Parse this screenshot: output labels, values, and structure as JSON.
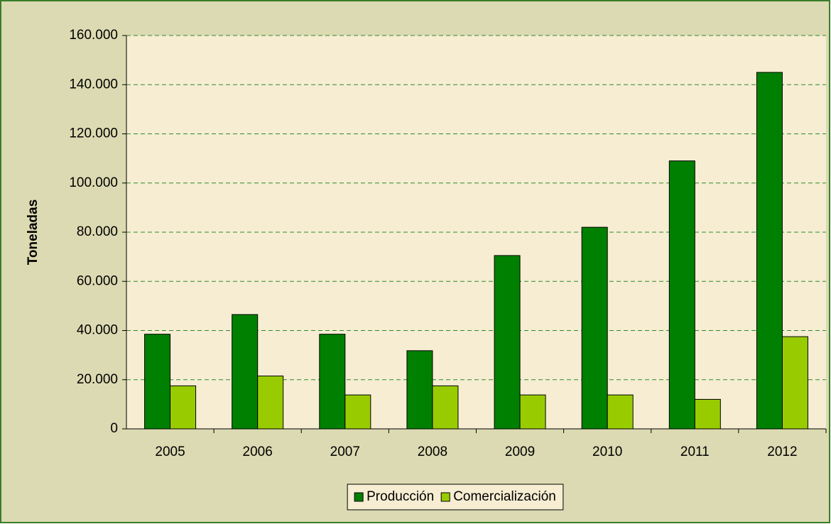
{
  "chart_data": {
    "type": "bar",
    "y_label": "Toneladas",
    "categories": [
      "2005",
      "2006",
      "2007",
      "2008",
      "2009",
      "2010",
      "2011",
      "2012"
    ],
    "series": [
      {
        "name": "Producción",
        "color": "#008000",
        "values": [
          38500,
          46500,
          38500,
          31800,
          70500,
          82000,
          109000,
          145000
        ]
      },
      {
        "name": "Comercialización",
        "color": "#99cc00",
        "values": [
          17500,
          21500,
          13800,
          17500,
          13800,
          13800,
          12000,
          37500
        ]
      }
    ],
    "ylim": [
      0,
      160000
    ],
    "yticks": [
      0,
      {
        "value": 20000,
        "label": "20.000"
      },
      {
        "value": 40000,
        "label": "40.000"
      },
      {
        "value": 60000,
        "label": "60.000"
      },
      {
        "value": 80000,
        "label": "80.000"
      },
      {
        "value": 100000,
        "label": "100.000"
      },
      {
        "value": 120000,
        "label": "120.000"
      },
      {
        "value": 140000,
        "label": "140.000"
      },
      {
        "value": 160000,
        "label": "160.000"
      }
    ],
    "grid": true,
    "legend": "bottom"
  }
}
